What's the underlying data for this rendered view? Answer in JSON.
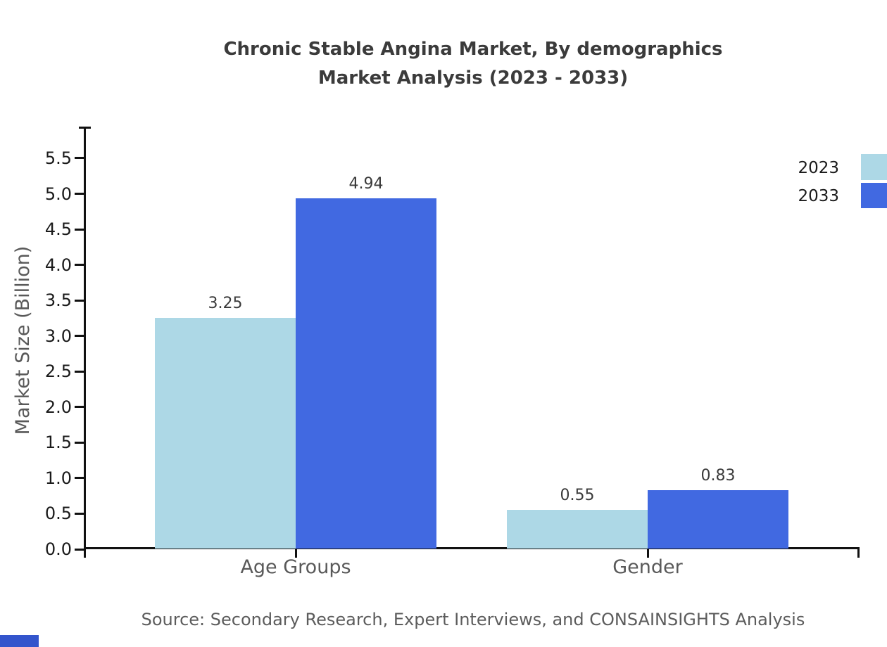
{
  "title": {
    "line1": "Chronic Stable Angina Market, By demographics",
    "line2": "Market Analysis (2023 - 2033)"
  },
  "source": "Source: Secondary Research, Expert Interviews, and CONSAINSIGHTS Analysis",
  "colors": {
    "series_2023": "#ADD8E6",
    "series_2033": "#4169E1",
    "title_text": "#3b3b3b",
    "axis_text": "#595959",
    "tick_text": "#1a1a1a",
    "axis_line": "#111111",
    "source_text": "#5c5c5c",
    "corner_mark": "#3355CC",
    "background": "#ffffff"
  },
  "chart_data": {
    "type": "bar",
    "title": "Chronic Stable Angina Market, By demographics Market Analysis (2023 - 2033)",
    "categories": [
      "Age Groups",
      "Gender"
    ],
    "series": [
      {
        "name": "2023",
        "color": "#ADD8E6",
        "values": [
          3.25,
          0.55
        ]
      },
      {
        "name": "2033",
        "color": "#4169E1",
        "values": [
          4.94,
          0.83
        ]
      }
    ],
    "value_labels": [
      "3.25",
      "4.94",
      "0.55",
      "0.83"
    ],
    "xlabel": "",
    "ylabel": "Market Size (Billion)",
    "ylim": [
      0,
      5.5
    ],
    "ytick_step": 0.5,
    "ytick_format_decimals": 1,
    "grid": false,
    "legend_position": "top-right",
    "bar_value_labels_shown": true
  }
}
